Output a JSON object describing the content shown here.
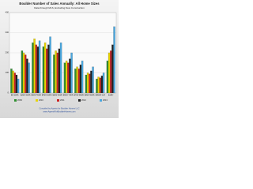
{
  "chart_data": {
    "type": "bar",
    "title": "Boulder Number of Sales Annually: All Home Sizes",
    "subtitle": "Data through MLS, Excluding New Construction",
    "categories": [
      "$0-200K",
      "$200-300K",
      "$300-400K",
      "$400-500K",
      "$500-600K",
      "$600-700K",
      "$700-800K",
      "$800-900K",
      "$900K-1M",
      "$1M+"
    ],
    "series": [
      {
        "name": "2009",
        "color": "#2f8f2f",
        "values": [
          120,
          210,
          250,
          230,
          190,
          150,
          120,
          90,
          70,
          160
        ]
      },
      {
        "name": "2010",
        "color": "#e8d400",
        "values": [
          110,
          200,
          270,
          250,
          210,
          160,
          130,
          100,
          80,
          200
        ]
      },
      {
        "name": "2011",
        "color": "#cc2020",
        "values": [
          100,
          190,
          240,
          220,
          200,
          150,
          120,
          95,
          75,
          210
        ]
      },
      {
        "name": "2012",
        "color": "#222222",
        "values": [
          90,
          170,
          230,
          240,
          220,
          170,
          140,
          110,
          85,
          240
        ]
      },
      {
        "name": "2013",
        "color": "#4aa8e0",
        "values": [
          70,
          150,
          260,
          280,
          250,
          200,
          160,
          130,
          100,
          330
        ]
      }
    ],
    "ylim": [
      0,
      400
    ],
    "yticks": [
      0,
      100,
      200,
      300,
      400
    ],
    "grid": true,
    "footer": [
      "Compiled by Agents for Boulder Homes LLC",
      "www.AgentsForBoulderHomes.com"
    ]
  }
}
